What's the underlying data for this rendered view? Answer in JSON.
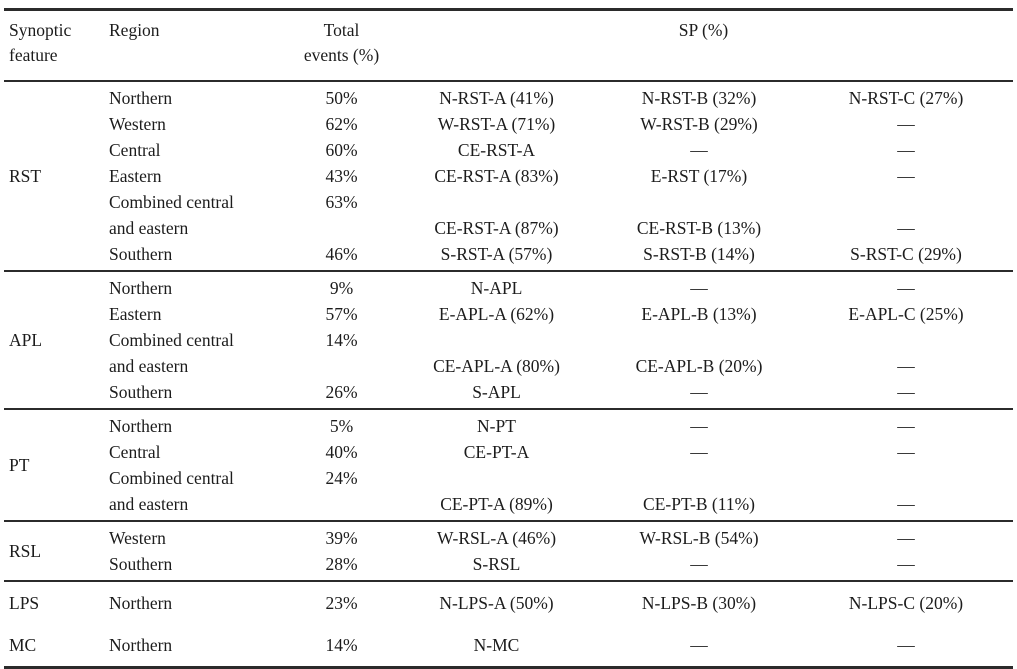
{
  "style": {
    "text_color": "#1c1c1c",
    "rule_color": "#2b2b2b",
    "background": "#ffffff"
  },
  "table": {
    "headers": {
      "synoptic_line1": "Synoptic",
      "synoptic_line2": "feature",
      "region": "Region",
      "total_line1": "Total",
      "total_line2": "events (%)",
      "sp": "SP (%)"
    },
    "sections": [
      {
        "feature": "RST",
        "rule_above": false,
        "tall": false,
        "rows": [
          {
            "region": "Northern",
            "total": "50%",
            "sp1": "N-RST-A (41%)",
            "sp2": "N-RST-B (32%)",
            "sp3": "N-RST-C (27%)"
          },
          {
            "region": "Western",
            "total": "62%",
            "sp1": "W-RST-A (71%)",
            "sp2": "W-RST-B (29%)",
            "sp3": "—"
          },
          {
            "region": "Central",
            "total": "60%",
            "sp1": "CE-RST-A",
            "sp2": "—",
            "sp3": "—"
          },
          {
            "region": "Eastern",
            "total": "43%",
            "sp1": "CE-RST-A (83%)",
            "sp2": "E-RST (17%)",
            "sp3": "—"
          },
          {
            "region": "Combined central",
            "total": "63%",
            "sp1": "",
            "sp2": "",
            "sp3": ""
          },
          {
            "region": "and eastern",
            "total": "",
            "sp1": "CE-RST-A (87%)",
            "sp2": "CE-RST-B (13%)",
            "sp3": "—"
          },
          {
            "region": "Southern",
            "total": "46%",
            "sp1": "S-RST-A (57%)",
            "sp2": "S-RST-B (14%)",
            "sp3": "S-RST-C (29%)"
          }
        ]
      },
      {
        "feature": "APL",
        "rule_above": true,
        "tall": false,
        "rows": [
          {
            "region": "Northern",
            "total": "9%",
            "sp1": "N-APL",
            "sp2": "—",
            "sp3": "—"
          },
          {
            "region": "Eastern",
            "total": "57%",
            "sp1": "E-APL-A (62%)",
            "sp2": "E-APL-B (13%)",
            "sp3": "E-APL-C (25%)"
          },
          {
            "region": "Combined central",
            "total": "14%",
            "sp1": "",
            "sp2": "",
            "sp3": ""
          },
          {
            "region": "and eastern",
            "total": "",
            "sp1": "CE-APL-A (80%)",
            "sp2": "CE-APL-B (20%)",
            "sp3": "—"
          },
          {
            "region": "Southern",
            "total": "26%",
            "sp1": "S-APL",
            "sp2": "—",
            "sp3": "—"
          }
        ]
      },
      {
        "feature": "PT",
        "rule_above": true,
        "tall": false,
        "rows": [
          {
            "region": "Northern",
            "total": "5%",
            "sp1": "N-PT",
            "sp2": "—",
            "sp3": "—"
          },
          {
            "region": "Central",
            "total": "40%",
            "sp1": "CE-PT-A",
            "sp2": "—",
            "sp3": "—"
          },
          {
            "region": "Combined central",
            "total": "24%",
            "sp1": "",
            "sp2": "",
            "sp3": ""
          },
          {
            "region": "and eastern",
            "total": "",
            "sp1": "CE-PT-A (89%)",
            "sp2": "CE-PT-B (11%)",
            "sp3": "—"
          }
        ]
      },
      {
        "feature": "RSL",
        "rule_above": true,
        "tall": false,
        "rows": [
          {
            "region": "Western",
            "total": "39%",
            "sp1": "W-RSL-A (46%)",
            "sp2": "W-RSL-B (54%)",
            "sp3": "—"
          },
          {
            "region": "Southern",
            "total": "28%",
            "sp1": "S-RSL",
            "sp2": "—",
            "sp3": "—"
          }
        ]
      },
      {
        "feature": "LPS",
        "rule_above": true,
        "tall": true,
        "rows": [
          {
            "region": "Northern",
            "total": "23%",
            "sp1": "N-LPS-A (50%)",
            "sp2": "N-LPS-B (30%)",
            "sp3": "N-LPS-C (20%)"
          }
        ]
      },
      {
        "feature": "MC",
        "rule_above": false,
        "tall": true,
        "rows": [
          {
            "region": "Northern",
            "total": "14%",
            "sp1": "N-MC",
            "sp2": "—",
            "sp3": "—"
          }
        ]
      }
    ]
  }
}
